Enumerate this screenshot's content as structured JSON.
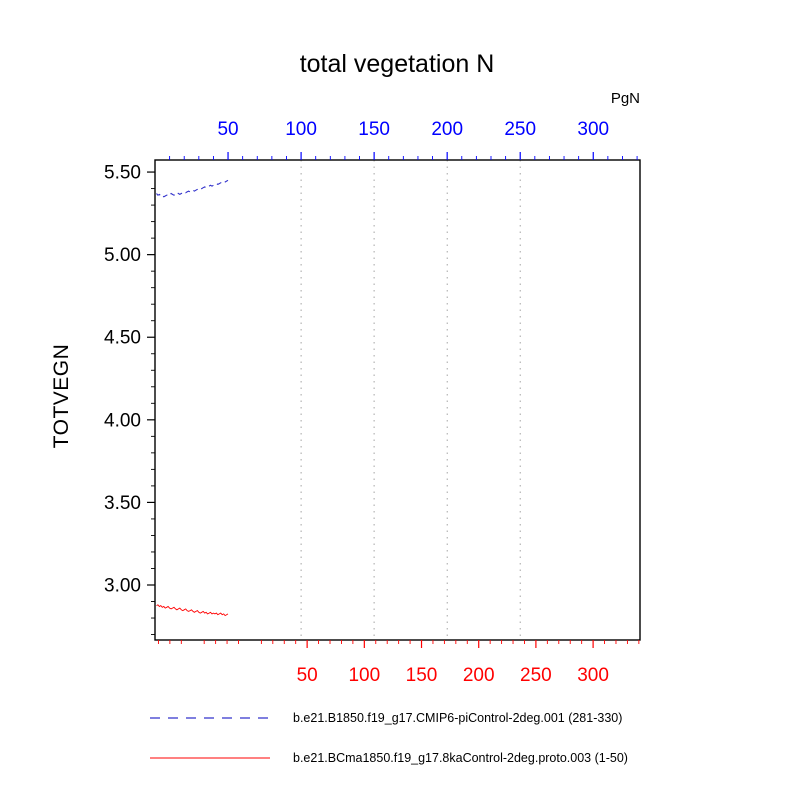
{
  "chart_data": {
    "type": "line",
    "title": "total vegetation N",
    "units": "PgN",
    "ylabel": "TOTVEGN",
    "axes": {
      "top": {
        "color": "#0000ff",
        "ticks": [
          50,
          100,
          150,
          200,
          250,
          300
        ],
        "range": [
          0,
          332
        ]
      },
      "bottom": {
        "color": "#ff0000",
        "ticks": [
          50,
          100,
          150,
          200,
          250,
          300
        ],
        "range": [
          -83,
          341
        ]
      },
      "left": {
        "color": "#000000",
        "ticks": [
          "3.00",
          "3.50",
          "4.00",
          "4.50",
          "5.00",
          "5.50"
        ],
        "range": [
          2.667,
          5.573
        ]
      }
    },
    "gridlines": {
      "axis": "top",
      "values": [
        100,
        150,
        200,
        250
      ]
    },
    "series": [
      {
        "name": "b.e21.B1850.f19_g17.CMIP6-piControl-2deg.001 (281-330)",
        "color": "#3333cc",
        "style": "dashed",
        "x": [
          1,
          2,
          3,
          4,
          5,
          6,
          7,
          8,
          9,
          10,
          11,
          12,
          13,
          14,
          15,
          16,
          17,
          18,
          19,
          20,
          21,
          22,
          23,
          24,
          25,
          26,
          27,
          28,
          29,
          30,
          31,
          32,
          33,
          34,
          35,
          36,
          37,
          38,
          39,
          40,
          41,
          42,
          43,
          44,
          45,
          46,
          47,
          48,
          49,
          50
        ],
        "y": [
          5.37,
          5.36,
          5.365,
          5.355,
          5.36,
          5.35,
          5.355,
          5.36,
          5.365,
          5.36,
          5.37,
          5.365,
          5.36,
          5.37,
          5.375,
          5.37,
          5.365,
          5.37,
          5.375,
          5.38,
          5.375,
          5.38,
          5.385,
          5.38,
          5.385,
          5.39,
          5.385,
          5.39,
          5.395,
          5.4,
          5.395,
          5.4,
          5.405,
          5.41,
          5.405,
          5.41,
          5.415,
          5.42,
          5.415,
          5.42,
          5.425,
          5.43,
          5.425,
          5.43,
          5.435,
          5.44,
          5.435,
          5.44,
          5.445,
          5.45
        ]
      },
      {
        "name": "b.e21.BCma1850.f19_g17.8kaControl-2deg.proto.003 (1-50)",
        "color": "#ff0000",
        "style": "solid",
        "x": [
          1,
          2,
          3,
          4,
          5,
          6,
          7,
          8,
          9,
          10,
          11,
          12,
          13,
          14,
          15,
          16,
          17,
          18,
          19,
          20,
          21,
          22,
          23,
          24,
          25,
          26,
          27,
          28,
          29,
          30,
          31,
          32,
          33,
          34,
          35,
          36,
          37,
          38,
          39,
          40,
          41,
          42,
          43,
          44,
          45,
          46,
          47,
          48,
          49,
          50
        ],
        "y": [
          2.875,
          2.88,
          2.87,
          2.875,
          2.865,
          2.87,
          2.86,
          2.865,
          2.87,
          2.86,
          2.855,
          2.86,
          2.865,
          2.855,
          2.85,
          2.855,
          2.86,
          2.85,
          2.845,
          2.85,
          2.855,
          2.845,
          2.84,
          2.845,
          2.85,
          2.84,
          2.835,
          2.84,
          2.845,
          2.835,
          2.83,
          2.835,
          2.84,
          2.83,
          2.835,
          2.825,
          2.83,
          2.835,
          2.825,
          2.83,
          2.825,
          2.83,
          2.82,
          2.825,
          2.83,
          2.82,
          2.825,
          2.815,
          2.82,
          2.825
        ]
      }
    ]
  }
}
